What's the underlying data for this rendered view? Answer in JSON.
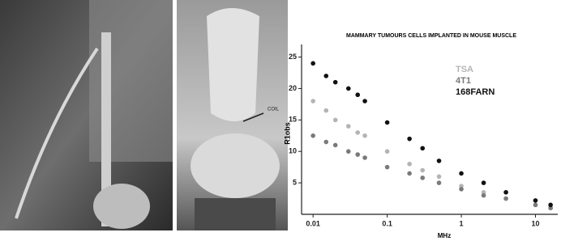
{
  "photo": {
    "annotation": "COIL"
  },
  "chart_data": {
    "type": "scatter",
    "title": "MAMMARY TUMOURS CELLS IMPLANTED IN MOUSE MUSCLE",
    "x_label": "MHz",
    "y_label": "R1obs",
    "x": [
      0.01,
      0.015,
      0.02,
      0.03,
      0.04,
      0.05,
      0.1,
      0.2,
      0.3,
      0.5,
      1,
      2,
      4,
      10,
      16
    ],
    "series": [
      {
        "name": "TSA",
        "color": "#b4b4b4",
        "values": [
          18,
          16.5,
          15,
          14,
          13,
          12.5,
          10,
          8,
          7,
          6,
          4.5,
          3.5,
          2.5,
          1.5,
          1
        ]
      },
      {
        "name": "4T1",
        "color": "#7a7a7a",
        "values": [
          12.5,
          11.5,
          11,
          10,
          9.5,
          9,
          7.5,
          6.5,
          5.8,
          5,
          4,
          3,
          2.5,
          1.5,
          1
        ]
      },
      {
        "name": "168FARN",
        "color": "#111111",
        "values": [
          24,
          22,
          21,
          20,
          19,
          18,
          14.6,
          12,
          10.5,
          8.5,
          6.5,
          5,
          3.5,
          2.2,
          1.5
        ]
      }
    ],
    "xlim": [
      0.007,
      20
    ],
    "ylim": [
      0,
      27
    ],
    "log_x": true,
    "xticks": [
      0.01,
      0.1,
      1,
      10
    ],
    "yticks": [
      5,
      10,
      15,
      20,
      25
    ]
  }
}
